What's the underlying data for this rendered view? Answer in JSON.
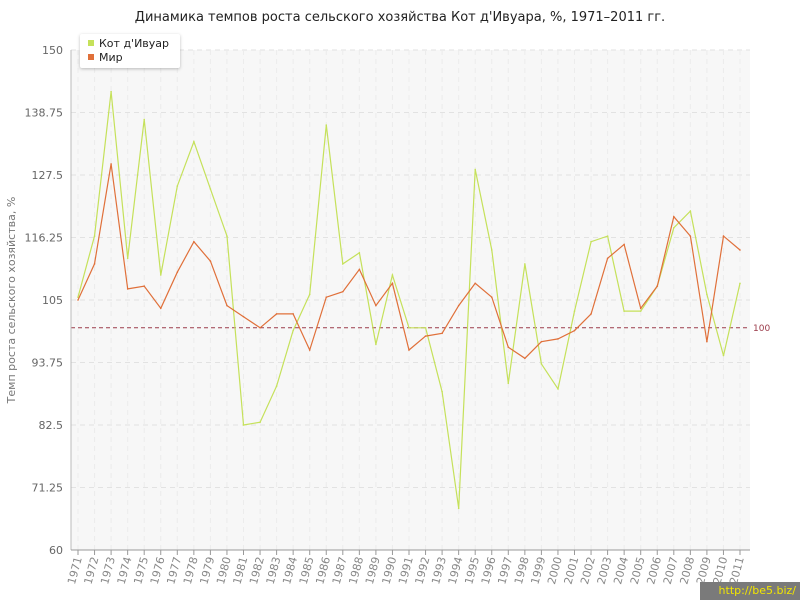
{
  "page": {
    "watermark": "http://be5.biz/"
  },
  "chart_data": {
    "type": "line",
    "title": "Динамика темпов роста сельского хозяйства Кот д'Ивуара, %, 1971–2011 гг.",
    "ylabel": "Темп роста сельского хозяйства, %",
    "xlabel": "",
    "ylim": [
      60,
      150
    ],
    "yticks": [
      "60",
      "71.25",
      "82.5",
      "93.75",
      "105",
      "116.25",
      "127.5",
      "138.75",
      "150"
    ],
    "reference_line": {
      "value": 100,
      "label": "100",
      "color": "#9b3b4a"
    },
    "x": [
      "1971",
      "1972",
      "1973",
      "1974",
      "1975",
      "1976",
      "1977",
      "1978",
      "1979",
      "1980",
      "1981",
      "1982",
      "1983",
      "1984",
      "1985",
      "1986",
      "1987",
      "1988",
      "1989",
      "1990",
      "1991",
      "1992",
      "1993",
      "1994",
      "1995",
      "1996",
      "1997",
      "1998",
      "1999",
      "2000",
      "2001",
      "2002",
      "2003",
      "2004",
      "2005",
      "2006",
      "2007",
      "2008",
      "2009",
      "2010",
      "2011"
    ],
    "series": [
      {
        "name": "Кот д'Ивуар",
        "color": "#c5e15a",
        "values": [
          105.5,
          116.5,
          142.5,
          112.5,
          137.5,
          109.5,
          125.5,
          133.5,
          125.0,
          116.5,
          82.5,
          83.0,
          89.5,
          99.5,
          106.0,
          136.5,
          111.5,
          113.5,
          97.0,
          109.5,
          100.0,
          100.0,
          88.5,
          67.5,
          128.5,
          114.0,
          90.0,
          111.5,
          93.5,
          89.0,
          103.0,
          115.5,
          116.5,
          103.0,
          103.0,
          107.5,
          118.0,
          121.0,
          106.0,
          95.0,
          108.0
        ]
      },
      {
        "name": "Мир",
        "color": "#e0703a",
        "values": [
          105.0,
          111.5,
          129.5,
          107.0,
          107.5,
          103.5,
          110.0,
          115.5,
          112.0,
          104.0,
          102.0,
          100.0,
          102.5,
          102.5,
          96.0,
          105.5,
          106.5,
          110.5,
          104.0,
          108.0,
          96.0,
          98.5,
          99.0,
          104.0,
          108.0,
          105.5,
          96.5,
          94.5,
          97.5,
          98.0,
          99.5,
          102.5,
          112.5,
          115.0,
          103.5,
          107.5,
          120.0,
          116.5,
          97.5,
          116.5,
          114.0
        ]
      }
    ],
    "grid": true,
    "legend": "top-left"
  }
}
